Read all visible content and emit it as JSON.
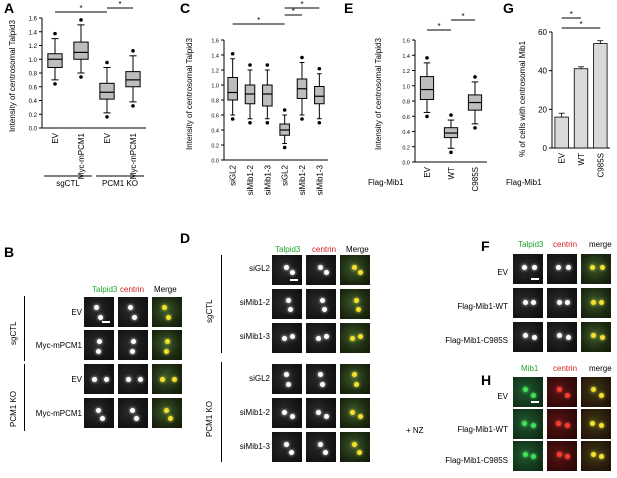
{
  "panels": {
    "A": {
      "letter": "A",
      "ylabel": "Intensity of centrosomal Talpid3",
      "yticks": [
        "0.0",
        "0.2",
        "0.4",
        "0.6",
        "0.8",
        "1.0",
        "1.2",
        "1.4",
        "1.6"
      ],
      "categories": [
        "EV",
        "Myc-mPCM1",
        "EV",
        "Myc-mPCM1"
      ],
      "groups": [
        "sgCTL",
        "PCM1 KO"
      ],
      "sig": [
        "*",
        "*"
      ]
    },
    "B": {
      "letter": "B",
      "headers": [
        "Talpid3",
        "centrin",
        "Merge"
      ],
      "rows": [
        "EV",
        "Myc-mPCM1",
        "EV",
        "Myc-mPCM1"
      ],
      "groups": [
        "sgCTL",
        "PCM1 KO"
      ]
    },
    "C": {
      "letter": "C",
      "ylabel": "Intensity of centrosomal Talpid3",
      "yticks": [
        "0.0",
        "0.2",
        "0.4",
        "0.6",
        "0.8",
        "1.0",
        "1.2",
        "1.4",
        "1.6"
      ],
      "categories": [
        "siGL2",
        "siMib1-2",
        "siMib1-3",
        "siGL2",
        "siMib1-2",
        "siMib1-3"
      ],
      "groups": [
        "sgCTL",
        "PCM1 KO"
      ],
      "sig": [
        "*",
        "*",
        "*"
      ]
    },
    "D": {
      "letter": "D",
      "headers": [
        "Talpid3",
        "centrin",
        "Merge"
      ],
      "rows": [
        "siGL2",
        "siMib1-2",
        "siMib1-3",
        "siGL2",
        "siMib1-2",
        "siMib1-3"
      ],
      "groups": [
        "sgCTL",
        "PCM1 KO"
      ]
    },
    "E": {
      "letter": "E",
      "ylabel": "Intensity of centrosomal Talpid3",
      "yticks": [
        "0.0",
        "0.2",
        "0.4",
        "0.6",
        "0.8",
        "1.0",
        "1.2",
        "1.4",
        "1.6"
      ],
      "rowlabel": "Flag-Mib1",
      "categories": [
        "EV",
        "WT",
        "C985S"
      ],
      "sig": [
        "*",
        "*"
      ]
    },
    "F": {
      "letter": "F",
      "headers": [
        "Talpid3",
        "centrin",
        "merge"
      ],
      "rows": [
        "EV",
        "Flag-Mib1-WT",
        "Flag-Mib1-C985S"
      ]
    },
    "G": {
      "letter": "G",
      "ylabel": "% of cells with centrosomal Mib1",
      "yticks": [
        "0",
        "20",
        "40",
        "60"
      ],
      "rowlabel": "Flag-Mib1",
      "categories": [
        "EV",
        "WT",
        "C985S"
      ],
      "sig": [
        "*",
        "*"
      ]
    },
    "H": {
      "letter": "H",
      "headers": [
        "Mib1",
        "centrin",
        "merge"
      ],
      "rows": [
        "EV",
        "Flag-Mib1-WT",
        "Flag-Mib1-C985S"
      ],
      "treatment": "+ NZ"
    }
  },
  "chart_data": [
    {
      "type": "box",
      "panel": "A",
      "ylabel": "Intensity of centrosomal Talpid3",
      "ylim": [
        0,
        1.6
      ],
      "categories": [
        "EV",
        "Myc-mPCM1",
        "EV",
        "Myc-mPCM1"
      ],
      "groups": [
        "sgCTL",
        "sgCTL",
        "PCM1 KO",
        "PCM1 KO"
      ],
      "boxes": [
        {
          "whislo": 0.7,
          "q1": 0.88,
          "med": 1.0,
          "q3": 1.08,
          "whishi": 1.3
        },
        {
          "whislo": 0.8,
          "q1": 1.0,
          "med": 1.1,
          "q3": 1.25,
          "whishi": 1.5
        },
        {
          "whislo": 0.22,
          "q1": 0.42,
          "med": 0.52,
          "q3": 0.65,
          "whishi": 0.88
        },
        {
          "whislo": 0.38,
          "q1": 0.6,
          "med": 0.7,
          "q3": 0.82,
          "whishi": 1.05
        }
      ]
    },
    {
      "type": "box",
      "panel": "C",
      "ylabel": "Intensity of centrosomal Talpid3",
      "ylim": [
        0,
        1.6
      ],
      "categories": [
        "siGL2",
        "siMib1-2",
        "siMib1-3",
        "siGL2",
        "siMib1-2",
        "siMib1-3"
      ],
      "groups": [
        "sgCTL",
        "sgCTL",
        "sgCTL",
        "PCM1 KO",
        "PCM1 KO",
        "PCM1 KO"
      ],
      "boxes": [
        {
          "whislo": 0.6,
          "q1": 0.8,
          "med": 0.9,
          "q3": 1.1,
          "whishi": 1.35
        },
        {
          "whislo": 0.55,
          "q1": 0.75,
          "med": 0.88,
          "q3": 1.0,
          "whishi": 1.2
        },
        {
          "whislo": 0.55,
          "q1": 0.72,
          "med": 0.88,
          "q3": 1.0,
          "whishi": 1.2
        },
        {
          "whislo": 0.22,
          "q1": 0.33,
          "med": 0.4,
          "q3": 0.48,
          "whishi": 0.6
        },
        {
          "whislo": 0.6,
          "q1": 0.82,
          "med": 0.95,
          "q3": 1.08,
          "whishi": 1.3
        },
        {
          "whislo": 0.55,
          "q1": 0.75,
          "med": 0.85,
          "q3": 0.98,
          "whishi": 1.15
        }
      ]
    },
    {
      "type": "box",
      "panel": "E",
      "ylabel": "Intensity of centrosomal Talpid3",
      "ylim": [
        0,
        1.6
      ],
      "categories": [
        "EV",
        "WT",
        "C985S"
      ],
      "boxes": [
        {
          "whislo": 0.65,
          "q1": 0.82,
          "med": 0.95,
          "q3": 1.12,
          "whishi": 1.3
        },
        {
          "whislo": 0.18,
          "q1": 0.32,
          "med": 0.38,
          "q3": 0.45,
          "whishi": 0.55
        },
        {
          "whislo": 0.5,
          "q1": 0.68,
          "med": 0.78,
          "q3": 0.88,
          "whishi": 1.05
        }
      ]
    },
    {
      "type": "bar",
      "panel": "G",
      "ylabel": "% of cells with centrosomal Mib1",
      "ylim": [
        0,
        60
      ],
      "categories": [
        "EV",
        "WT",
        "C985S"
      ],
      "values": [
        16,
        41,
        54
      ],
      "errors": [
        2,
        1,
        1.5
      ]
    }
  ]
}
